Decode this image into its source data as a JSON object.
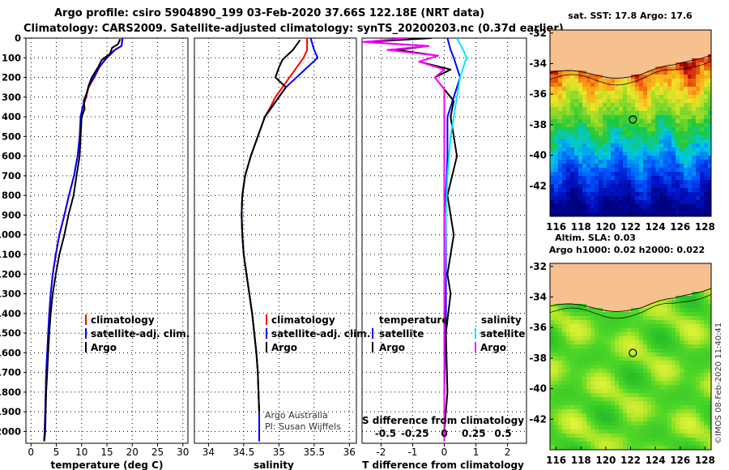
{
  "header": {
    "line1": "Argo profile: csiro 5904890_199 03-Feb-2020 37.66S 122.18E (NRT data)",
    "line2": "Climatology: CARS2009. Satellite-adjusted climatology: synTS_20200203.nc (0.37d earlier)"
  },
  "colors": {
    "climatology": "#ff0000",
    "satellite": "#0000ff",
    "argo": "#000000",
    "sat_salinity": "#00e5ff",
    "argo_salinity": "#ff00ff",
    "land": "#f7c08f"
  },
  "credits": {
    "line1": "Argo Australia",
    "line2": "PI: Susan Wijffels",
    "stamp": "©IMOS 08-Feb-2020 11:40:41"
  },
  "chart_data": [
    {
      "type": "line",
      "panel": "temperature",
      "xlabel": "temperature (deg C)",
      "ylabel": "",
      "xlim": [
        -1,
        31
      ],
      "ylim": [
        2060,
        0
      ],
      "y_inverted": true,
      "xticks": [
        0,
        5,
        10,
        15,
        20,
        25,
        30
      ],
      "yticks": [
        0,
        100,
        200,
        300,
        400,
        500,
        600,
        700,
        800,
        900,
        1000,
        1100,
        1200,
        1300,
        1400,
        1500,
        1600,
        1700,
        1800,
        1900,
        2000
      ],
      "grid": true,
      "legend": {
        "placement": "middle-right",
        "entries": [
          "climatology",
          "satellite-adj. clim.",
          "Argo"
        ]
      },
      "series": [
        {
          "name": "climatology",
          "color": "#ff0000",
          "x": [
            18.0,
            17.9,
            16.5,
            14.8,
            13.5,
            12.5,
            11.4,
            10.9,
            10.3,
            9.9,
            9.7,
            9.2,
            8.5,
            7.5,
            6.6,
            5.6,
            4.9,
            4.3,
            3.9,
            3.6,
            3.4,
            3.2,
            3.0,
            2.9,
            2.8,
            2.7,
            2.6
          ],
          "y": [
            0,
            40,
            60,
            100,
            150,
            200,
            250,
            300,
            350,
            400,
            500,
            600,
            700,
            800,
            900,
            1000,
            1100,
            1200,
            1300,
            1400,
            1500,
            1600,
            1700,
            1800,
            1900,
            2000,
            2050
          ]
        },
        {
          "name": "satellite-adj. clim.",
          "color": "#0000ff",
          "x": [
            18.1,
            17.9,
            16.6,
            15.0,
            13.4,
            12.4,
            11.3,
            10.8,
            10.2,
            9.8,
            9.6,
            9.2,
            8.5,
            7.5,
            6.6,
            5.6,
            4.9,
            4.3,
            3.9,
            3.6,
            3.4,
            3.2,
            3.0,
            2.9,
            2.8,
            2.7,
            2.6
          ],
          "y": [
            0,
            40,
            60,
            100,
            150,
            200,
            250,
            300,
            350,
            400,
            500,
            600,
            700,
            800,
            900,
            1000,
            1100,
            1200,
            1300,
            1400,
            1500,
            1600,
            1700,
            1800,
            1900,
            2000,
            2050
          ]
        },
        {
          "name": "Argo",
          "color": "#000000",
          "x": [
            17.6,
            17.2,
            16.0,
            15.6,
            14.0,
            13.2,
            12.0,
            11.4,
            11.0,
            10.4,
            10.6,
            10.0,
            9.8,
            9.6,
            9.0,
            8.4,
            7.4,
            6.6,
            5.6,
            4.9,
            4.3,
            3.9,
            3.6,
            3.4,
            3.2,
            3.0,
            2.9,
            2.8,
            2.7,
            2.6
          ],
          "y": [
            5,
            30,
            50,
            80,
            110,
            150,
            200,
            240,
            280,
            320,
            360,
            400,
            500,
            600,
            700,
            800,
            900,
            1000,
            1100,
            1200,
            1300,
            1400,
            1500,
            1600,
            1700,
            1800,
            1900,
            2000,
            2030,
            2050
          ]
        }
      ]
    },
    {
      "type": "line",
      "panel": "salinity",
      "xlabel": "salinity",
      "ylabel": "",
      "xlim": [
        33.8,
        36.1
      ],
      "ylim": [
        2060,
        0
      ],
      "y_inverted": true,
      "xticks": [
        34,
        34.5,
        35,
        35.5,
        36
      ],
      "grid": true,
      "legend": {
        "placement": "middle-right",
        "entries": [
          "climatology",
          "satellite-adj. clim.",
          "Argo"
        ]
      },
      "series": [
        {
          "name": "climatology",
          "color": "#ff0000",
          "x": [
            35.4,
            35.4,
            35.35,
            35.25,
            35.15,
            35.05,
            34.95,
            34.88,
            34.8,
            34.7,
            34.6,
            34.52,
            34.48,
            34.47,
            34.48,
            34.5,
            34.54,
            34.58,
            34.62,
            34.65,
            34.68,
            34.7,
            34.71,
            34.72,
            34.72
          ],
          "y": [
            0,
            60,
            100,
            150,
            200,
            250,
            300,
            350,
            400,
            500,
            600,
            700,
            800,
            900,
            1000,
            1100,
            1200,
            1300,
            1400,
            1500,
            1600,
            1700,
            1800,
            1900,
            2050
          ]
        },
        {
          "name": "satellite-adj. clim.",
          "color": "#0000ff",
          "x": [
            35.45,
            35.5,
            35.55,
            35.4,
            35.25,
            35.1,
            35.0,
            34.9,
            34.8,
            34.7,
            34.6,
            34.52,
            34.48,
            34.47,
            34.48,
            34.5,
            34.54,
            34.58,
            34.62,
            34.65,
            34.68,
            34.7,
            34.71,
            34.72,
            34.72
          ],
          "y": [
            0,
            60,
            100,
            150,
            200,
            250,
            300,
            350,
            400,
            500,
            600,
            700,
            800,
            900,
            1000,
            1100,
            1200,
            1300,
            1400,
            1500,
            1600,
            1700,
            1800,
            1900,
            2050
          ]
        },
        {
          "name": "Argo",
          "color": "#000000",
          "x": [
            35.3,
            35.2,
            35.05,
            35.0,
            34.95,
            35.1,
            35.0,
            34.9,
            34.8,
            34.7,
            34.6,
            34.52,
            34.48,
            34.47,
            34.48,
            34.5,
            34.54,
            34.58,
            34.62,
            34.65,
            34.68,
            34.7,
            34.71,
            34.72
          ],
          "y": [
            10,
            60,
            110,
            150,
            200,
            250,
            300,
            350,
            400,
            500,
            600,
            700,
            800,
            900,
            1000,
            1100,
            1200,
            1300,
            1400,
            1500,
            1600,
            1700,
            1800,
            1900
          ]
        }
      ]
    },
    {
      "type": "line",
      "panel": "difference",
      "xlabel": "T difference from climatology",
      "title_secondary": "S difference from climatology",
      "xlim": [
        -2.6,
        2.6
      ],
      "ylim": [
        2060,
        0
      ],
      "y_inverted": true,
      "xticks": [
        -2,
        -1,
        0,
        1,
        2
      ],
      "xticks_secondary": [
        "-0.5",
        "-0.25",
        "0",
        "0.25",
        "0.5"
      ],
      "grid": true,
      "legend": {
        "placement": "middle",
        "group_labels": [
          "temperature",
          "salinity"
        ],
        "entries": [
          "satellite",
          "Argo",
          "satellite",
          "Argo"
        ]
      },
      "series": [
        {
          "name": "satellite",
          "group": "temperature",
          "color": "#0000ff",
          "x": [
            0.1,
            0.2,
            0.3,
            0.4,
            0.5,
            0.4,
            0.3,
            0.2,
            0.1,
            0.1,
            0.05,
            0.05,
            0.05,
            0.0,
            0.0
          ],
          "y": [
            0,
            60,
            100,
            150,
            200,
            250,
            300,
            350,
            400,
            600,
            800,
            1000,
            1400,
            1800,
            2050
          ]
        },
        {
          "name": "Argo",
          "group": "temperature",
          "color": "#000000",
          "x": [
            -0.4,
            -2.5,
            -0.5,
            -1.5,
            -0.2,
            -0.8,
            0.2,
            -0.3,
            0.0,
            0.3,
            0.2,
            0.4,
            0.1,
            0.3,
            0.1,
            0.2,
            0.05,
            0.1,
            0.0
          ],
          "y": [
            0,
            20,
            40,
            60,
            90,
            120,
            160,
            200,
            260,
            320,
            400,
            600,
            800,
            1000,
            1200,
            1300,
            1500,
            1800,
            2000
          ]
        },
        {
          "name": "satellite",
          "group": "salinity",
          "color": "#00e5ff",
          "x": [
            0.4,
            0.6,
            0.7,
            0.5,
            0.4,
            0.3,
            0.2,
            0.1,
            0.05,
            0.0,
            0.0
          ],
          "y": [
            0,
            60,
            100,
            200,
            300,
            400,
            500,
            700,
            900,
            1400,
            2050
          ]
        },
        {
          "name": "Argo",
          "group": "salinity",
          "color": "#ff00ff",
          "x": [
            -1.2,
            -2.6,
            -0.5,
            -1.8,
            -0.2,
            -0.8,
            0.0,
            -0.3,
            0.0,
            0.0,
            0.0
          ],
          "y": [
            0,
            20,
            40,
            60,
            90,
            120,
            160,
            200,
            260,
            400,
            2050
          ]
        }
      ]
    },
    {
      "type": "heatmap",
      "panel": "map-sst",
      "title": "sat. SST: 17.8 Argo: 17.6",
      "xticks": [
        116,
        118,
        120,
        122,
        124,
        126,
        128
      ],
      "yticks": [
        -32,
        -34,
        -36,
        -38,
        -40,
        -42
      ],
      "xlim": [
        115.5,
        128.5
      ],
      "ylim": [
        -44,
        -31.8
      ],
      "float_position": {
        "lon": 122.18,
        "lat": -37.66
      }
    },
    {
      "type": "heatmap",
      "panel": "map-sla",
      "title_line1": "Altim. SLA: 0.03",
      "title_line2": "Argo h1000: 0.02 h2000: 0.022",
      "xticks": [
        116,
        118,
        120,
        122,
        124,
        126,
        128
      ],
      "yticks": [
        -32,
        -34,
        -36,
        -38,
        -40,
        -42
      ],
      "xlim": [
        115.5,
        128.5
      ],
      "ylim": [
        -44,
        -31.8
      ],
      "float_position": {
        "lon": 122.18,
        "lat": -37.66
      }
    }
  ]
}
